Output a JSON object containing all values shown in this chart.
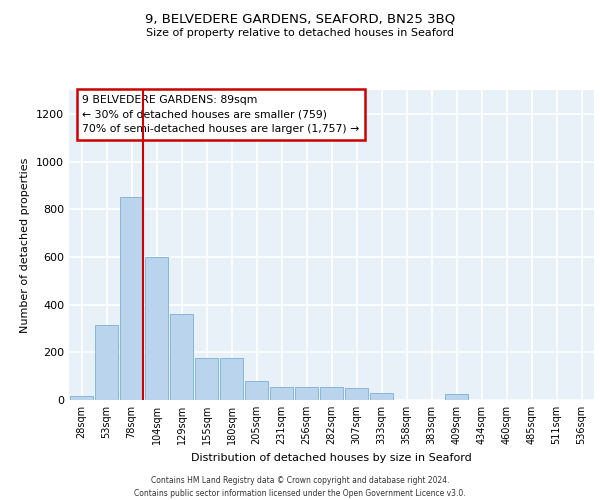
{
  "title": "9, BELVEDERE GARDENS, SEAFORD, BN25 3BQ",
  "subtitle": "Size of property relative to detached houses in Seaford",
  "xlabel": "Distribution of detached houses by size in Seaford",
  "ylabel": "Number of detached properties",
  "bar_color": "#bad4ed",
  "bar_edge_color": "#7aafd4",
  "categories": [
    "28sqm",
    "53sqm",
    "78sqm",
    "104sqm",
    "129sqm",
    "155sqm",
    "180sqm",
    "205sqm",
    "231sqm",
    "256sqm",
    "282sqm",
    "307sqm",
    "333sqm",
    "358sqm",
    "383sqm",
    "409sqm",
    "434sqm",
    "460sqm",
    "485sqm",
    "511sqm",
    "536sqm"
  ],
  "values": [
    18,
    315,
    850,
    600,
    360,
    175,
    175,
    78,
    55,
    55,
    55,
    50,
    28,
    0,
    0,
    25,
    0,
    0,
    0,
    0,
    0
  ],
  "ylim": [
    0,
    1300
  ],
  "yticks": [
    0,
    200,
    400,
    600,
    800,
    1000,
    1200
  ],
  "annotation_text": "9 BELVEDERE GARDENS: 89sqm\n← 30% of detached houses are smaller (759)\n70% of semi-detached houses are larger (1,757) →",
  "annotation_box_color": "#cc0000",
  "background_color": "#e8f0f8",
  "footnote": "Contains HM Land Registry data © Crown copyright and database right 2024.\nContains public sector information licensed under the Open Government Licence v3.0.",
  "grid_color": "#ffffff",
  "line_color": "#cc0000",
  "line_index": 2.44
}
